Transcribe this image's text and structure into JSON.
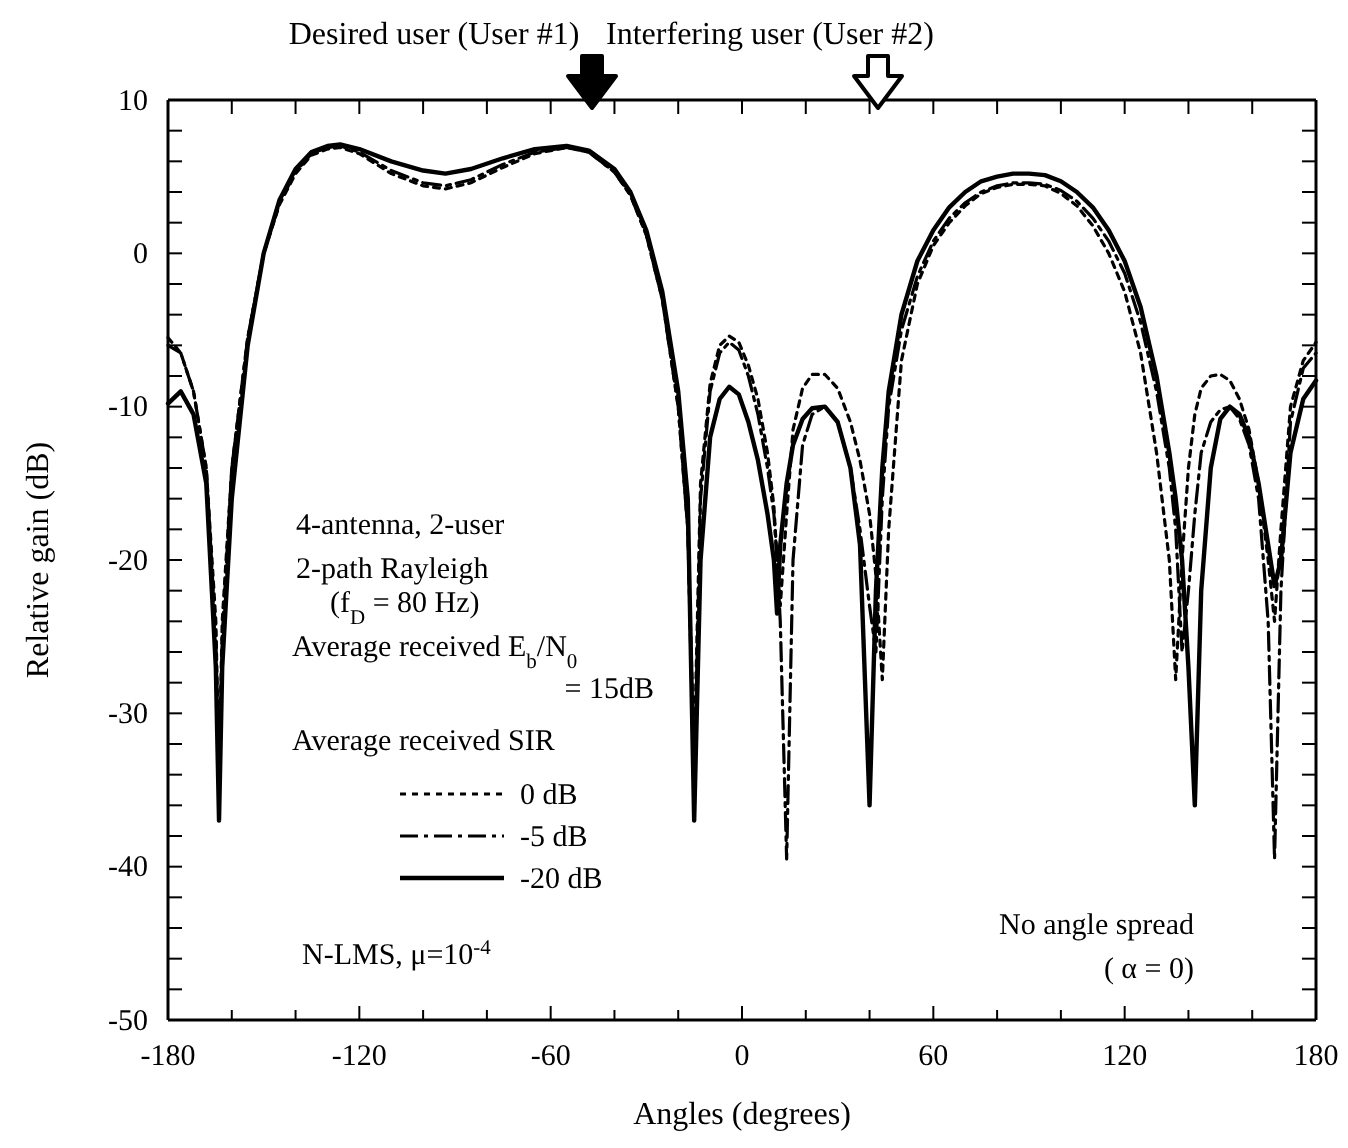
{
  "chart_data": {
    "type": "line",
    "xlabel": "Angles (degrees)",
    "ylabel": "Relative gain (dB)",
    "legend_title": "Average received SIR",
    "legend": "bottom left",
    "xlim": [
      -180,
      180
    ],
    "ylim": [
      -50,
      10
    ],
    "xticks": [
      -180,
      {
        "value": -160,
        "label": null
      },
      {
        "value": -140,
        "label": null
      },
      -120,
      {
        "value": -100,
        "label": null
      },
      {
        "value": -80,
        "label": null
      },
      -60,
      {
        "value": -40,
        "label": null
      },
      {
        "value": -20,
        "label": null
      },
      0,
      {
        "value": 20,
        "label": null
      },
      {
        "value": 40,
        "label": null
      },
      60,
      {
        "value": 80,
        "label": null
      },
      {
        "value": 100,
        "label": null
      },
      120,
      {
        "value": 140,
        "label": null
      },
      {
        "value": 160,
        "label": null
      },
      180
    ],
    "yticks": [
      -50,
      {
        "value": -48,
        "label": null
      },
      {
        "value": -46,
        "label": null
      },
      {
        "value": -44,
        "label": null
      },
      {
        "value": -42,
        "label": null
      },
      -40,
      {
        "value": -38,
        "label": null
      },
      {
        "value": -36,
        "label": null
      },
      {
        "value": -34,
        "label": null
      },
      {
        "value": -32,
        "label": null
      },
      -30,
      {
        "value": -28,
        "label": null
      },
      {
        "value": -26,
        "label": null
      },
      {
        "value": -24,
        "label": null
      },
      {
        "value": -22,
        "label": null
      },
      -20,
      {
        "value": -18,
        "label": null
      },
      {
        "value": -16,
        "label": null
      },
      {
        "value": -14,
        "label": null
      },
      {
        "value": -12,
        "label": null
      },
      -10,
      {
        "value": -8,
        "label": null
      },
      {
        "value": -6,
        "label": null
      },
      {
        "value": -4,
        "label": null
      },
      {
        "value": -2,
        "label": null
      },
      0,
      {
        "value": 2,
        "label": null
      },
      {
        "value": 4,
        "label": null
      },
      {
        "value": 6,
        "label": null
      },
      {
        "value": 8,
        "label": null
      },
      10
    ],
    "grid": false,
    "x": [
      -180,
      -176,
      -172,
      -168,
      -165,
      -164,
      -163,
      -160,
      -155,
      -150,
      -145,
      -140,
      -135,
      -130,
      -126,
      -120,
      -110,
      -100,
      -93,
      -85,
      -75,
      -65,
      -55,
      -48,
      -40,
      -35,
      -30,
      -25,
      -20,
      -17,
      -15,
      -13,
      -10,
      -7,
      -4,
      -1,
      2,
      5,
      8,
      10,
      11,
      12,
      14,
      16,
      19,
      22,
      26,
      30,
      34,
      37,
      40,
      42,
      44,
      46,
      50,
      55,
      60,
      65,
      70,
      75,
      80,
      85,
      90,
      95,
      100,
      105,
      110,
      115,
      120,
      125,
      130,
      134,
      136,
      138,
      140,
      142,
      144,
      147,
      150,
      153,
      156,
      159,
      162,
      165,
      167,
      169,
      172,
      176,
      180
    ],
    "series": [
      {
        "name": "0 dB",
        "color": "#000000",
        "line_style": "dotted",
        "values": [
          -5.5,
          -6.5,
          -9,
          -14,
          -24,
          -34,
          -24,
          -14,
          -5.5,
          0,
          3.2,
          5.2,
          6.4,
          6.8,
          6.9,
          6.5,
          5.2,
          4.4,
          4.2,
          4.6,
          5.6,
          6.5,
          6.9,
          6.6,
          5.3,
          3.8,
          1.2,
          -3,
          -10,
          -18,
          -33,
          -15,
          -8.5,
          -6,
          -5.4,
          -5.8,
          -7.3,
          -9.5,
          -13,
          -16.5,
          -20,
          -23,
          -17,
          -11.5,
          -8.8,
          -7.9,
          -7.9,
          -8.8,
          -11,
          -13.5,
          -17,
          -21,
          -27.8,
          -18,
          -7,
          -2,
          0.5,
          2,
          3.1,
          3.9,
          4.3,
          4.5,
          4.5,
          4.4,
          3.9,
          3.1,
          1.8,
          0,
          -2.5,
          -6.5,
          -13,
          -20,
          -27.8,
          -20,
          -14,
          -10.5,
          -8.8,
          -8,
          -7.9,
          -8.3,
          -9.5,
          -11.5,
          -15,
          -20,
          -24,
          -18,
          -10,
          -7,
          -5.8
        ]
      },
      {
        "name": "-5 dB",
        "color": "#000000",
        "line_style": "dashed",
        "values": [
          -6,
          -6.5,
          -9,
          -14,
          -25,
          -36,
          -25,
          -14,
          -5.5,
          0,
          3.3,
          5.3,
          6.5,
          6.9,
          7,
          6.6,
          5.4,
          4.6,
          4.4,
          4.8,
          5.8,
          6.6,
          6.9,
          6.6,
          5.3,
          3.8,
          1.2,
          -3,
          -10,
          -18,
          -35,
          -16,
          -9,
          -6.5,
          -5.8,
          -6.3,
          -8,
          -10.5,
          -14,
          -17,
          -20,
          -24,
          -39.5,
          -20,
          -12.5,
          -10.5,
          -10,
          -11,
          -14,
          -18,
          -23,
          -26,
          -16,
          -10,
          -5,
          -1.5,
          0.8,
          2.3,
          3.3,
          4,
          4.4,
          4.6,
          4.6,
          4.5,
          4.1,
          3.4,
          2.3,
          0.8,
          -1.3,
          -4.5,
          -9,
          -14,
          -18,
          -26,
          -22,
          -17,
          -13,
          -11,
          -10.2,
          -10,
          -10.8,
          -12.5,
          -16,
          -24,
          -39.5,
          -22,
          -11,
          -7.5,
          -6.5
        ]
      },
      {
        "name": "-20 dB",
        "color": "#000000",
        "line_style": "solid",
        "values": [
          -9.8,
          -9,
          -10.5,
          -15,
          -27,
          -37,
          -27,
          -16,
          -6,
          0,
          3.5,
          5.5,
          6.6,
          7,
          7.1,
          6.8,
          6,
          5.4,
          5.2,
          5.5,
          6.2,
          6.8,
          7,
          6.7,
          5.5,
          4,
          1.5,
          -2.5,
          -9,
          -16,
          -37,
          -20,
          -12,
          -9.5,
          -8.7,
          -9.2,
          -11,
          -13.5,
          -17,
          -20,
          -23.5,
          -19,
          -15,
          -12.5,
          -10.8,
          -10.1,
          -10,
          -11,
          -14,
          -19,
          -36,
          -22,
          -14,
          -9,
          -4,
          -0.5,
          1.5,
          3,
          4,
          4.7,
          5,
          5.2,
          5.2,
          5.1,
          4.7,
          4,
          3,
          1.5,
          -0.5,
          -3.5,
          -8,
          -13,
          -16,
          -20,
          -27,
          -36,
          -22,
          -14,
          -10.8,
          -10,
          -10.5,
          -12,
          -15,
          -19,
          -21.7,
          -20,
          -13,
          -9.5,
          -8.3
        ]
      }
    ],
    "annotations": [
      "Desired user (User #1)",
      "Interfering user (User #2)",
      "4-antenna, 2-user",
      "2-path Rayleigh",
      "(f$_{D}$ = 80 Hz)",
      "Average received E$_{b}$/N$_{0}$",
      "= 15dB",
      "N-LMS, μ=10$^{-4}$",
      "No angle spread",
      "( α = 0)"
    ]
  }
}
